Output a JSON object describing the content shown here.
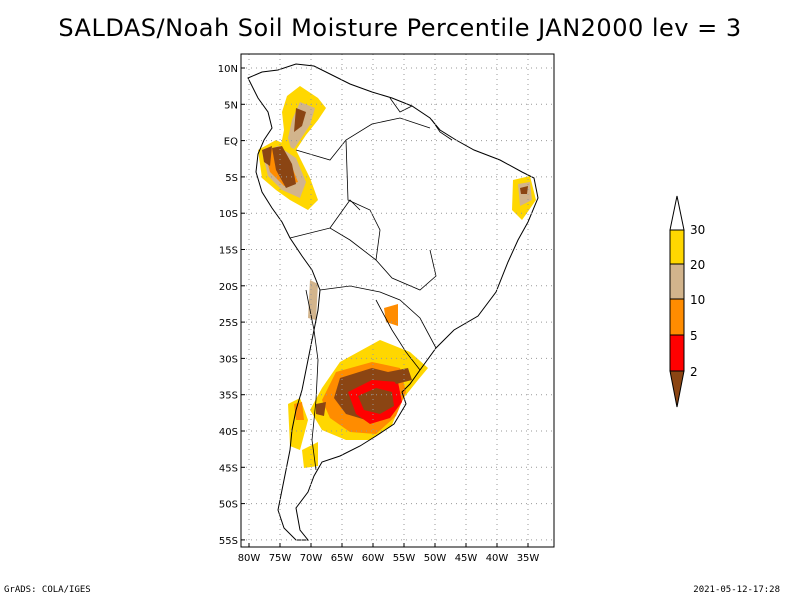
{
  "title": "SALDAS/Noah Soil Moisture Percentile JAN2000 lev = 3",
  "footer": {
    "left": "GrADS: COLA/IGES",
    "right": "2021-05-12-17:28"
  },
  "map": {
    "lat_labels": [
      "10N",
      "5N",
      "EQ",
      "5S",
      "10S",
      "15S",
      "20S",
      "25S",
      "30S",
      "35S",
      "40S",
      "45S",
      "50S",
      "55S"
    ],
    "lon_labels": [
      "80W",
      "75W",
      "70W",
      "65W",
      "60W",
      "55W",
      "50W",
      "45W",
      "40W",
      "35W"
    ],
    "lat_range": [
      -56,
      12
    ],
    "lon_range": [
      -81,
      -33
    ]
  },
  "legend": {
    "labels": [
      "2",
      "5",
      "10",
      "20",
      "30"
    ],
    "colors": {
      "lt2": "#8b4513",
      "2_5": "#ff0000",
      "5_10": "#ff8c00",
      "10_20": "#d2b48c",
      "20_30": "#ffd700",
      "gt30": "#ffffff"
    }
  }
}
